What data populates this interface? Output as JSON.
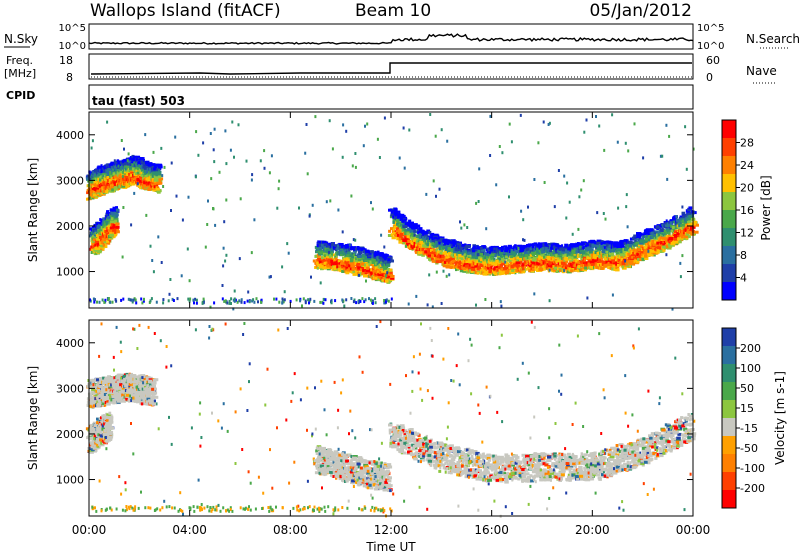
{
  "header": {
    "station": "Wallops Island (fitACF)",
    "beam": "Beam 10",
    "date": "05/Jan/2012"
  },
  "sky_panel": {
    "left_label": "N.Sky",
    "left_ticks": [
      "10^5",
      "10^0"
    ],
    "right_ticks": [
      "10^5",
      "10^0"
    ],
    "right_label": "N.Search"
  },
  "freq_panel": {
    "left_label_line1": "Freq.",
    "left_label_line2": "[MHz]",
    "left_ticks": [
      "18",
      "8"
    ],
    "right_ticks": [
      "60",
      "0"
    ],
    "right_label": "Nave"
  },
  "cpid": {
    "label": "CPID",
    "mode": "tau (fast) 503"
  },
  "chart_data": [
    {
      "type": "heatmap",
      "title": "",
      "xlabel": "Time UT",
      "ylabel": "Slant Range [km]",
      "x_ticks": [
        "00:00",
        "04:00",
        "08:00",
        "12:00",
        "16:00",
        "20:00",
        "00:00"
      ],
      "y_ticks": [
        "1000",
        "2000",
        "3000",
        "4000"
      ],
      "ylim": [
        200,
        4500
      ],
      "colorbar": {
        "label": "Power [dB]",
        "ticks": [
          "4",
          "8",
          "12",
          "16",
          "20",
          "24",
          "28"
        ],
        "colors": [
          "#0000ff",
          "#1f3fa8",
          "#2a6fa0",
          "#2f8f6f",
          "#4aa84a",
          "#8cc63f",
          "#ffc000",
          "#ff8000",
          "#ff4000",
          "#ff0000"
        ]
      },
      "series": [
        {
          "x": [
            0.0,
            0.3,
            0.6,
            0.9,
            1.2,
            1.5,
            1.8,
            2.1,
            2.4,
            2.7
          ],
          "y": [
            2700,
            2800,
            2850,
            2900,
            2950,
            3000,
            3050,
            2950,
            2900,
            2850
          ]
        },
        {
          "x": [
            0.1,
            0.4,
            0.7,
            1.0
          ],
          "y": [
            1500,
            1600,
            1800,
            1950
          ]
        },
        {
          "x": [
            9.0,
            9.8,
            10.6,
            11.4,
            11.9
          ],
          "y": [
            1200,
            1150,
            1050,
            950,
            850
          ]
        },
        {
          "x": [
            12.0,
            13.0,
            14.0,
            15.0,
            16.0,
            17.0,
            18.0,
            19.0,
            20.0,
            21.0,
            22.0,
            23.0,
            24.0
          ],
          "y": [
            1900,
            1500,
            1250,
            1100,
            1050,
            1100,
            1150,
            1100,
            1200,
            1150,
            1400,
            1650,
            1950
          ]
        }
      ]
    },
    {
      "type": "heatmap",
      "title": "",
      "xlabel": "Time UT",
      "ylabel": "Slant Range [km]",
      "x_ticks": [
        "00:00",
        "04:00",
        "08:00",
        "12:00",
        "16:00",
        "20:00",
        "00:00"
      ],
      "y_ticks": [
        "1000",
        "2000",
        "3000",
        "4000"
      ],
      "ylim": [
        200,
        4500
      ],
      "colorbar": {
        "label": "Velocity [m s-1]",
        "ticks": [
          "200",
          "100",
          "50",
          "15",
          "-15",
          "-50",
          "-100",
          "-200"
        ],
        "colors": [
          "#1f3fa8",
          "#2a6fa0",
          "#2f8f6f",
          "#4aa84a",
          "#8cc63f",
          "#c8c8c0",
          "#ffa000",
          "#ff8000",
          "#ff4000",
          "#ff0000"
        ]
      },
      "series": [
        {
          "x": [
            0.0,
            0.5,
            1.0,
            1.5,
            2.0,
            2.5
          ],
          "y": [
            2700,
            2750,
            2800,
            2850,
            2800,
            2750
          ]
        },
        {
          "x": [
            0.0,
            0.4,
            0.8
          ],
          "y": [
            1700,
            1850,
            2000
          ]
        },
        {
          "x": [
            9.0,
            10.0,
            11.0,
            11.9
          ],
          "y": [
            1250,
            1100,
            950,
            850
          ]
        },
        {
          "x": [
            12.0,
            14.0,
            16.0,
            18.0,
            20.0,
            22.0,
            24.0
          ],
          "y": [
            1800,
            1300,
            1050,
            1100,
            1100,
            1450,
            2000
          ]
        }
      ]
    }
  ]
}
